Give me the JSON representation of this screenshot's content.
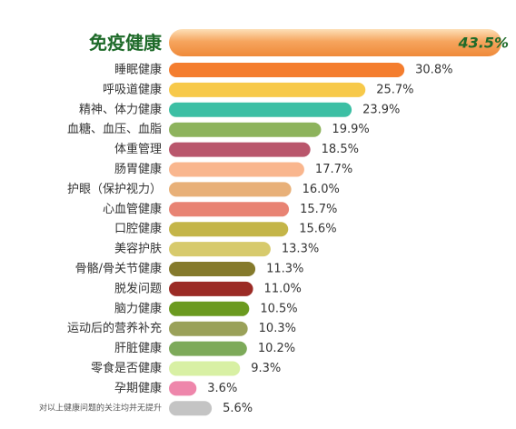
{
  "chart_data": {
    "type": "bar",
    "orientation": "horizontal",
    "xlim": [
      0,
      43.5
    ],
    "categories": [
      "免疫健康",
      "睡眠健康",
      "呼吸道健康",
      "精神、体力健康",
      "血糖、血压、血脂",
      "体重管理",
      "肠胃健康",
      "护眼（保护视力）",
      "心血管健康",
      "口腔健康",
      "美容护肤",
      "骨骼/骨关节健康",
      "脱发问题",
      "脑力健康",
      "运动后的营养补充",
      "肝脏健康",
      "零食是否健康",
      "孕期健康",
      "对以上健康问题的关注均并无提升"
    ],
    "values": [
      43.5,
      30.8,
      25.7,
      23.9,
      19.9,
      18.5,
      17.7,
      16.0,
      15.7,
      15.6,
      13.3,
      11.3,
      11.0,
      10.5,
      10.3,
      10.2,
      9.3,
      3.6,
      5.6
    ],
    "value_labels": [
      "43.5%",
      "30.8%",
      "25.7%",
      "23.9%",
      "19.9%",
      "18.5%",
      "17.7%",
      "16.0%",
      "15.7%",
      "15.6%",
      "13.3%",
      "11.3%",
      "11.0%",
      "10.5%",
      "10.3%",
      "10.2%",
      "9.3%",
      "3.6%",
      "5.6%"
    ],
    "colors": [
      "#f4a15c",
      "#f47d2e",
      "#f7c94a",
      "#3cbfa4",
      "#8db35c",
      "#b9566c",
      "#f9b68e",
      "#e8b078",
      "#e88373",
      "#c4b548",
      "#d7ca6c",
      "#857a2c",
      "#9b2b25",
      "#6b9a1f",
      "#9aa159",
      "#7daa5a",
      "#d8f0a4",
      "#ee86ab",
      "#c4c4c4"
    ],
    "highlight_index": 0,
    "grid": false
  }
}
